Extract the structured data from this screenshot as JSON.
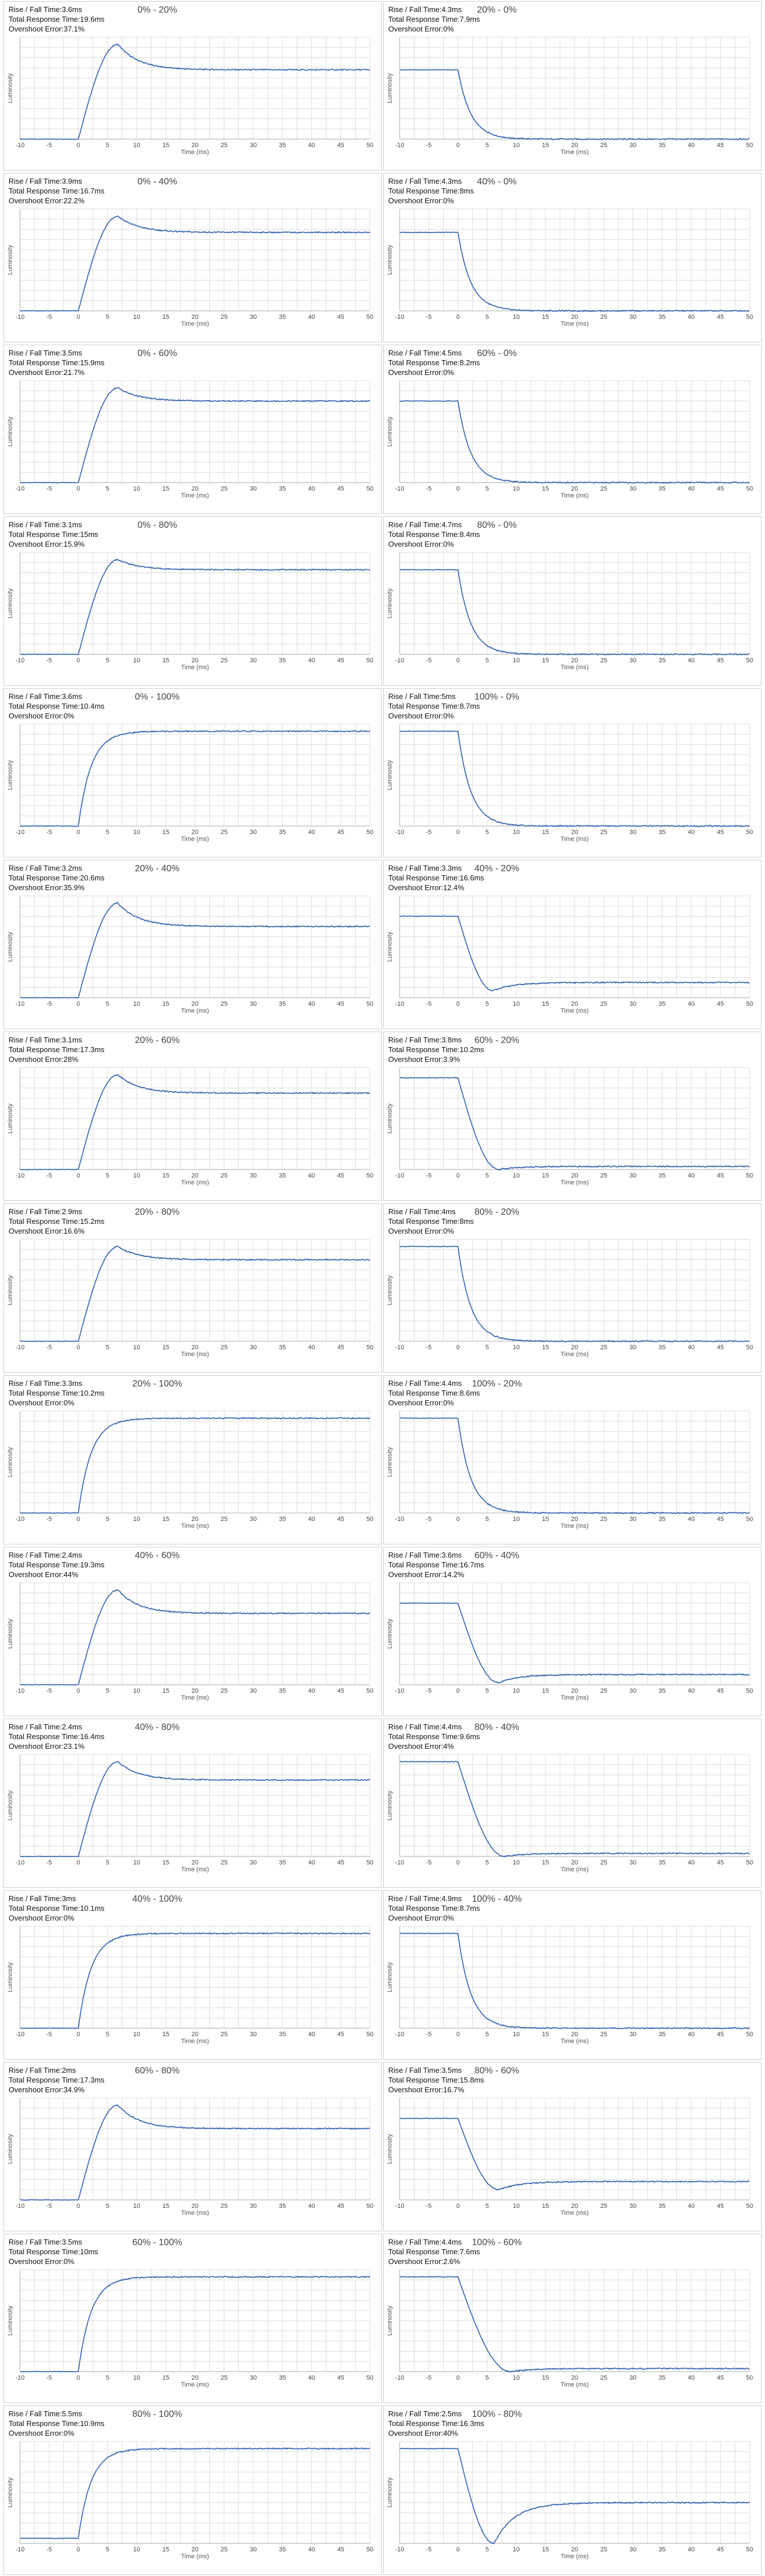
{
  "axes": {
    "xlabel": "Time (ms)",
    "ylabel": "Luminosity",
    "x_ticks": [
      -10,
      -5,
      0,
      5,
      10,
      15,
      20,
      25,
      30,
      35,
      40,
      45,
      50
    ],
    "xlim": [
      -10,
      50
    ],
    "grid": true
  },
  "labels": {
    "rise_fall": "Rise / Fall Time:",
    "total": "Total Response Time:",
    "overshoot": "Overshoot Error:"
  },
  "colors": {
    "line": "#2f5fb0",
    "grid": "#dddddd",
    "axis": "#aaaaaa"
  },
  "chart_data": [
    {
      "type": "line",
      "title": "0% - 20%",
      "rise_fall_time": "3.6ms",
      "total_response_time": "19.6ms",
      "overshoot_error": "37.1%",
      "start_level": 0.0,
      "end_level": 0.68,
      "peak_level": 0.93,
      "transition_start_ms": 0,
      "peak_time_ms": 6.8
    },
    {
      "type": "line",
      "title": "20% - 0%",
      "rise_fall_time": "4.3ms",
      "total_response_time": "7.9ms",
      "overshoot_error": "0%",
      "start_level": 0.68,
      "end_level": 0.0,
      "peak_level": 0.0,
      "transition_start_ms": 0,
      "peak_time_ms": 9
    },
    {
      "type": "line",
      "title": "0% - 40%",
      "rise_fall_time": "3.9ms",
      "total_response_time": "16.7ms",
      "overshoot_error": "22.2%",
      "start_level": 0.0,
      "end_level": 0.77,
      "peak_level": 0.93,
      "transition_start_ms": 0,
      "peak_time_ms": 6.8
    },
    {
      "type": "line",
      "title": "40% - 0%",
      "rise_fall_time": "4.3ms",
      "total_response_time": "8ms",
      "overshoot_error": "0%",
      "start_level": 0.77,
      "end_level": 0.0,
      "peak_level": 0.0,
      "transition_start_ms": 0,
      "peak_time_ms": 9
    },
    {
      "type": "line",
      "title": "0% - 60%",
      "rise_fall_time": "3.5ms",
      "total_response_time": "15.9ms",
      "overshoot_error": "21.7%",
      "start_level": 0.0,
      "end_level": 0.8,
      "peak_level": 0.93,
      "transition_start_ms": 0,
      "peak_time_ms": 6.8
    },
    {
      "type": "line",
      "title": "60% - 0%",
      "rise_fall_time": "4.5ms",
      "total_response_time": "8.2ms",
      "overshoot_error": "0%",
      "start_level": 0.8,
      "end_level": 0.0,
      "peak_level": 0.0,
      "transition_start_ms": 0,
      "peak_time_ms": 9
    },
    {
      "type": "line",
      "title": "0% - 80%",
      "rise_fall_time": "3.1ms",
      "total_response_time": "15ms",
      "overshoot_error": "15.9%",
      "start_level": 0.0,
      "end_level": 0.83,
      "peak_level": 0.93,
      "transition_start_ms": 0,
      "peak_time_ms": 6.8
    },
    {
      "type": "line",
      "title": "80% - 0%",
      "rise_fall_time": "4.7ms",
      "total_response_time": "8.4ms",
      "overshoot_error": "0%",
      "start_level": 0.83,
      "end_level": 0.0,
      "peak_level": 0.0,
      "transition_start_ms": 0,
      "peak_time_ms": 9
    },
    {
      "type": "line",
      "title": "0% - 100%",
      "rise_fall_time": "3.6ms",
      "total_response_time": "10.4ms",
      "overshoot_error": "0%",
      "start_level": 0.0,
      "end_level": 0.93,
      "peak_level": 0.93,
      "transition_start_ms": 0,
      "peak_time_ms": 9
    },
    {
      "type": "line",
      "title": "100% - 0%",
      "rise_fall_time": "5ms",
      "total_response_time": "8.7ms",
      "overshoot_error": "0%",
      "start_level": 0.93,
      "end_level": 0.0,
      "peak_level": 0.0,
      "transition_start_ms": 0,
      "peak_time_ms": 9
    },
    {
      "type": "line",
      "title": "20% - 40%",
      "rise_fall_time": "3.2ms",
      "total_response_time": "20.6ms",
      "overshoot_error": "35.9%",
      "start_level": 0.0,
      "end_level": 0.7,
      "peak_level": 0.93,
      "transition_start_ms": 0,
      "peak_time_ms": 6.8
    },
    {
      "type": "line",
      "title": "40% - 20%",
      "rise_fall_time": "3.3ms",
      "total_response_time": "16.6ms",
      "overshoot_error": "12.4%",
      "start_level": 0.8,
      "end_level": 0.15,
      "peak_level": 0.07,
      "transition_start_ms": 0,
      "peak_time_ms": 6
    },
    {
      "type": "line",
      "title": "20% - 60%",
      "rise_fall_time": "3.1ms",
      "total_response_time": "17.3ms",
      "overshoot_error": "28%",
      "start_level": 0.0,
      "end_level": 0.75,
      "peak_level": 0.93,
      "transition_start_ms": 0,
      "peak_time_ms": 6.8
    },
    {
      "type": "line",
      "title": "60% - 20%",
      "rise_fall_time": "3.8ms",
      "total_response_time": "10.2ms",
      "overshoot_error": "3.9%",
      "start_level": 0.9,
      "end_level": 0.03,
      "peak_level": 0.0,
      "transition_start_ms": 0,
      "peak_time_ms": 7
    },
    {
      "type": "line",
      "title": "20% - 80%",
      "rise_fall_time": "2.9ms",
      "total_response_time": "15.2ms",
      "overshoot_error": "16.6%",
      "start_level": 0.0,
      "end_level": 0.8,
      "peak_level": 0.93,
      "transition_start_ms": 0,
      "peak_time_ms": 6.8
    },
    {
      "type": "line",
      "title": "80% - 20%",
      "rise_fall_time": "4ms",
      "total_response_time": "8ms",
      "overshoot_error": "0%",
      "start_level": 0.93,
      "end_level": 0.0,
      "peak_level": 0.0,
      "transition_start_ms": 0,
      "peak_time_ms": 9
    },
    {
      "type": "line",
      "title": "20% - 100%",
      "rise_fall_time": "3.3ms",
      "total_response_time": "10.2ms",
      "overshoot_error": "0%",
      "start_level": 0.0,
      "end_level": 0.93,
      "peak_level": 0.93,
      "transition_start_ms": 0,
      "peak_time_ms": 9
    },
    {
      "type": "line",
      "title": "100% - 20%",
      "rise_fall_time": "4.4ms",
      "total_response_time": "8.6ms",
      "overshoot_error": "0%",
      "start_level": 0.93,
      "end_level": 0.0,
      "peak_level": 0.0,
      "transition_start_ms": 0,
      "peak_time_ms": 9
    },
    {
      "type": "line",
      "title": "40% - 60%",
      "rise_fall_time": "2.4ms",
      "total_response_time": "19.3ms",
      "overshoot_error": "44%",
      "start_level": 0.0,
      "end_level": 0.7,
      "peak_level": 0.93,
      "transition_start_ms": 0,
      "peak_time_ms": 6.8
    },
    {
      "type": "line",
      "title": "60% - 40%",
      "rise_fall_time": "3.6ms",
      "total_response_time": "16.7ms",
      "overshoot_error": "14.2%",
      "start_level": 0.8,
      "end_level": 0.1,
      "peak_level": 0.02,
      "transition_start_ms": 0,
      "peak_time_ms": 7
    },
    {
      "type": "line",
      "title": "40% - 80%",
      "rise_fall_time": "2.4ms",
      "total_response_time": "16.4ms",
      "overshoot_error": "23.1%",
      "start_level": 0.0,
      "end_level": 0.75,
      "peak_level": 0.93,
      "transition_start_ms": 0,
      "peak_time_ms": 6.8
    },
    {
      "type": "line",
      "title": "80% - 40%",
      "rise_fall_time": "4.4ms",
      "total_response_time": "9.6ms",
      "overshoot_error": "4%",
      "start_level": 0.93,
      "end_level": 0.03,
      "peak_level": 0.0,
      "transition_start_ms": 0,
      "peak_time_ms": 8
    },
    {
      "type": "line",
      "title": "40% - 100%",
      "rise_fall_time": "3ms",
      "total_response_time": "10.1ms",
      "overshoot_error": "0%",
      "start_level": 0.0,
      "end_level": 0.93,
      "peak_level": 0.93,
      "transition_start_ms": 0,
      "peak_time_ms": 9
    },
    {
      "type": "line",
      "title": "100% - 40%",
      "rise_fall_time": "4.9ms",
      "total_response_time": "8.7ms",
      "overshoot_error": "0%",
      "start_level": 0.93,
      "end_level": 0.0,
      "peak_level": 0.0,
      "transition_start_ms": 0,
      "peak_time_ms": 9
    },
    {
      "type": "line",
      "title": "60% - 80%",
      "rise_fall_time": "2ms",
      "total_response_time": "17.3ms",
      "overshoot_error": "34.9%",
      "start_level": 0.0,
      "end_level": 0.7,
      "peak_level": 0.93,
      "transition_start_ms": 0,
      "peak_time_ms": 6.8
    },
    {
      "type": "line",
      "title": "80% - 60%",
      "rise_fall_time": "3.5ms",
      "total_response_time": "15.8ms",
      "overshoot_error": "16.7%",
      "start_level": 0.8,
      "end_level": 0.18,
      "peak_level": 0.1,
      "transition_start_ms": 0,
      "peak_time_ms": 7
    },
    {
      "type": "line",
      "title": "60% - 100%",
      "rise_fall_time": "3.5ms",
      "total_response_time": "10ms",
      "overshoot_error": "0%",
      "start_level": 0.0,
      "end_level": 0.93,
      "peak_level": 0.93,
      "transition_start_ms": 0,
      "peak_time_ms": 9
    },
    {
      "type": "line",
      "title": "100% - 60%",
      "rise_fall_time": "4.4ms",
      "total_response_time": "7.6ms",
      "overshoot_error": "2.6%",
      "start_level": 0.93,
      "end_level": 0.03,
      "peak_level": 0.0,
      "transition_start_ms": 0,
      "peak_time_ms": 9
    },
    {
      "type": "line",
      "title": "80% - 100%",
      "rise_fall_time": "5.5ms",
      "total_response_time": "10.9ms",
      "overshoot_error": "0%",
      "start_level": 0.05,
      "end_level": 0.93,
      "peak_level": 0.93,
      "transition_start_ms": 0,
      "peak_time_ms": 9
    },
    {
      "type": "line",
      "title": "100% - 80%",
      "rise_fall_time": "2.5ms",
      "total_response_time": "16.3ms",
      "overshoot_error": "40%",
      "start_level": 0.93,
      "end_level": 0.4,
      "peak_level": 0.0,
      "transition_start_ms": 0,
      "peak_time_ms": 6.2
    }
  ]
}
